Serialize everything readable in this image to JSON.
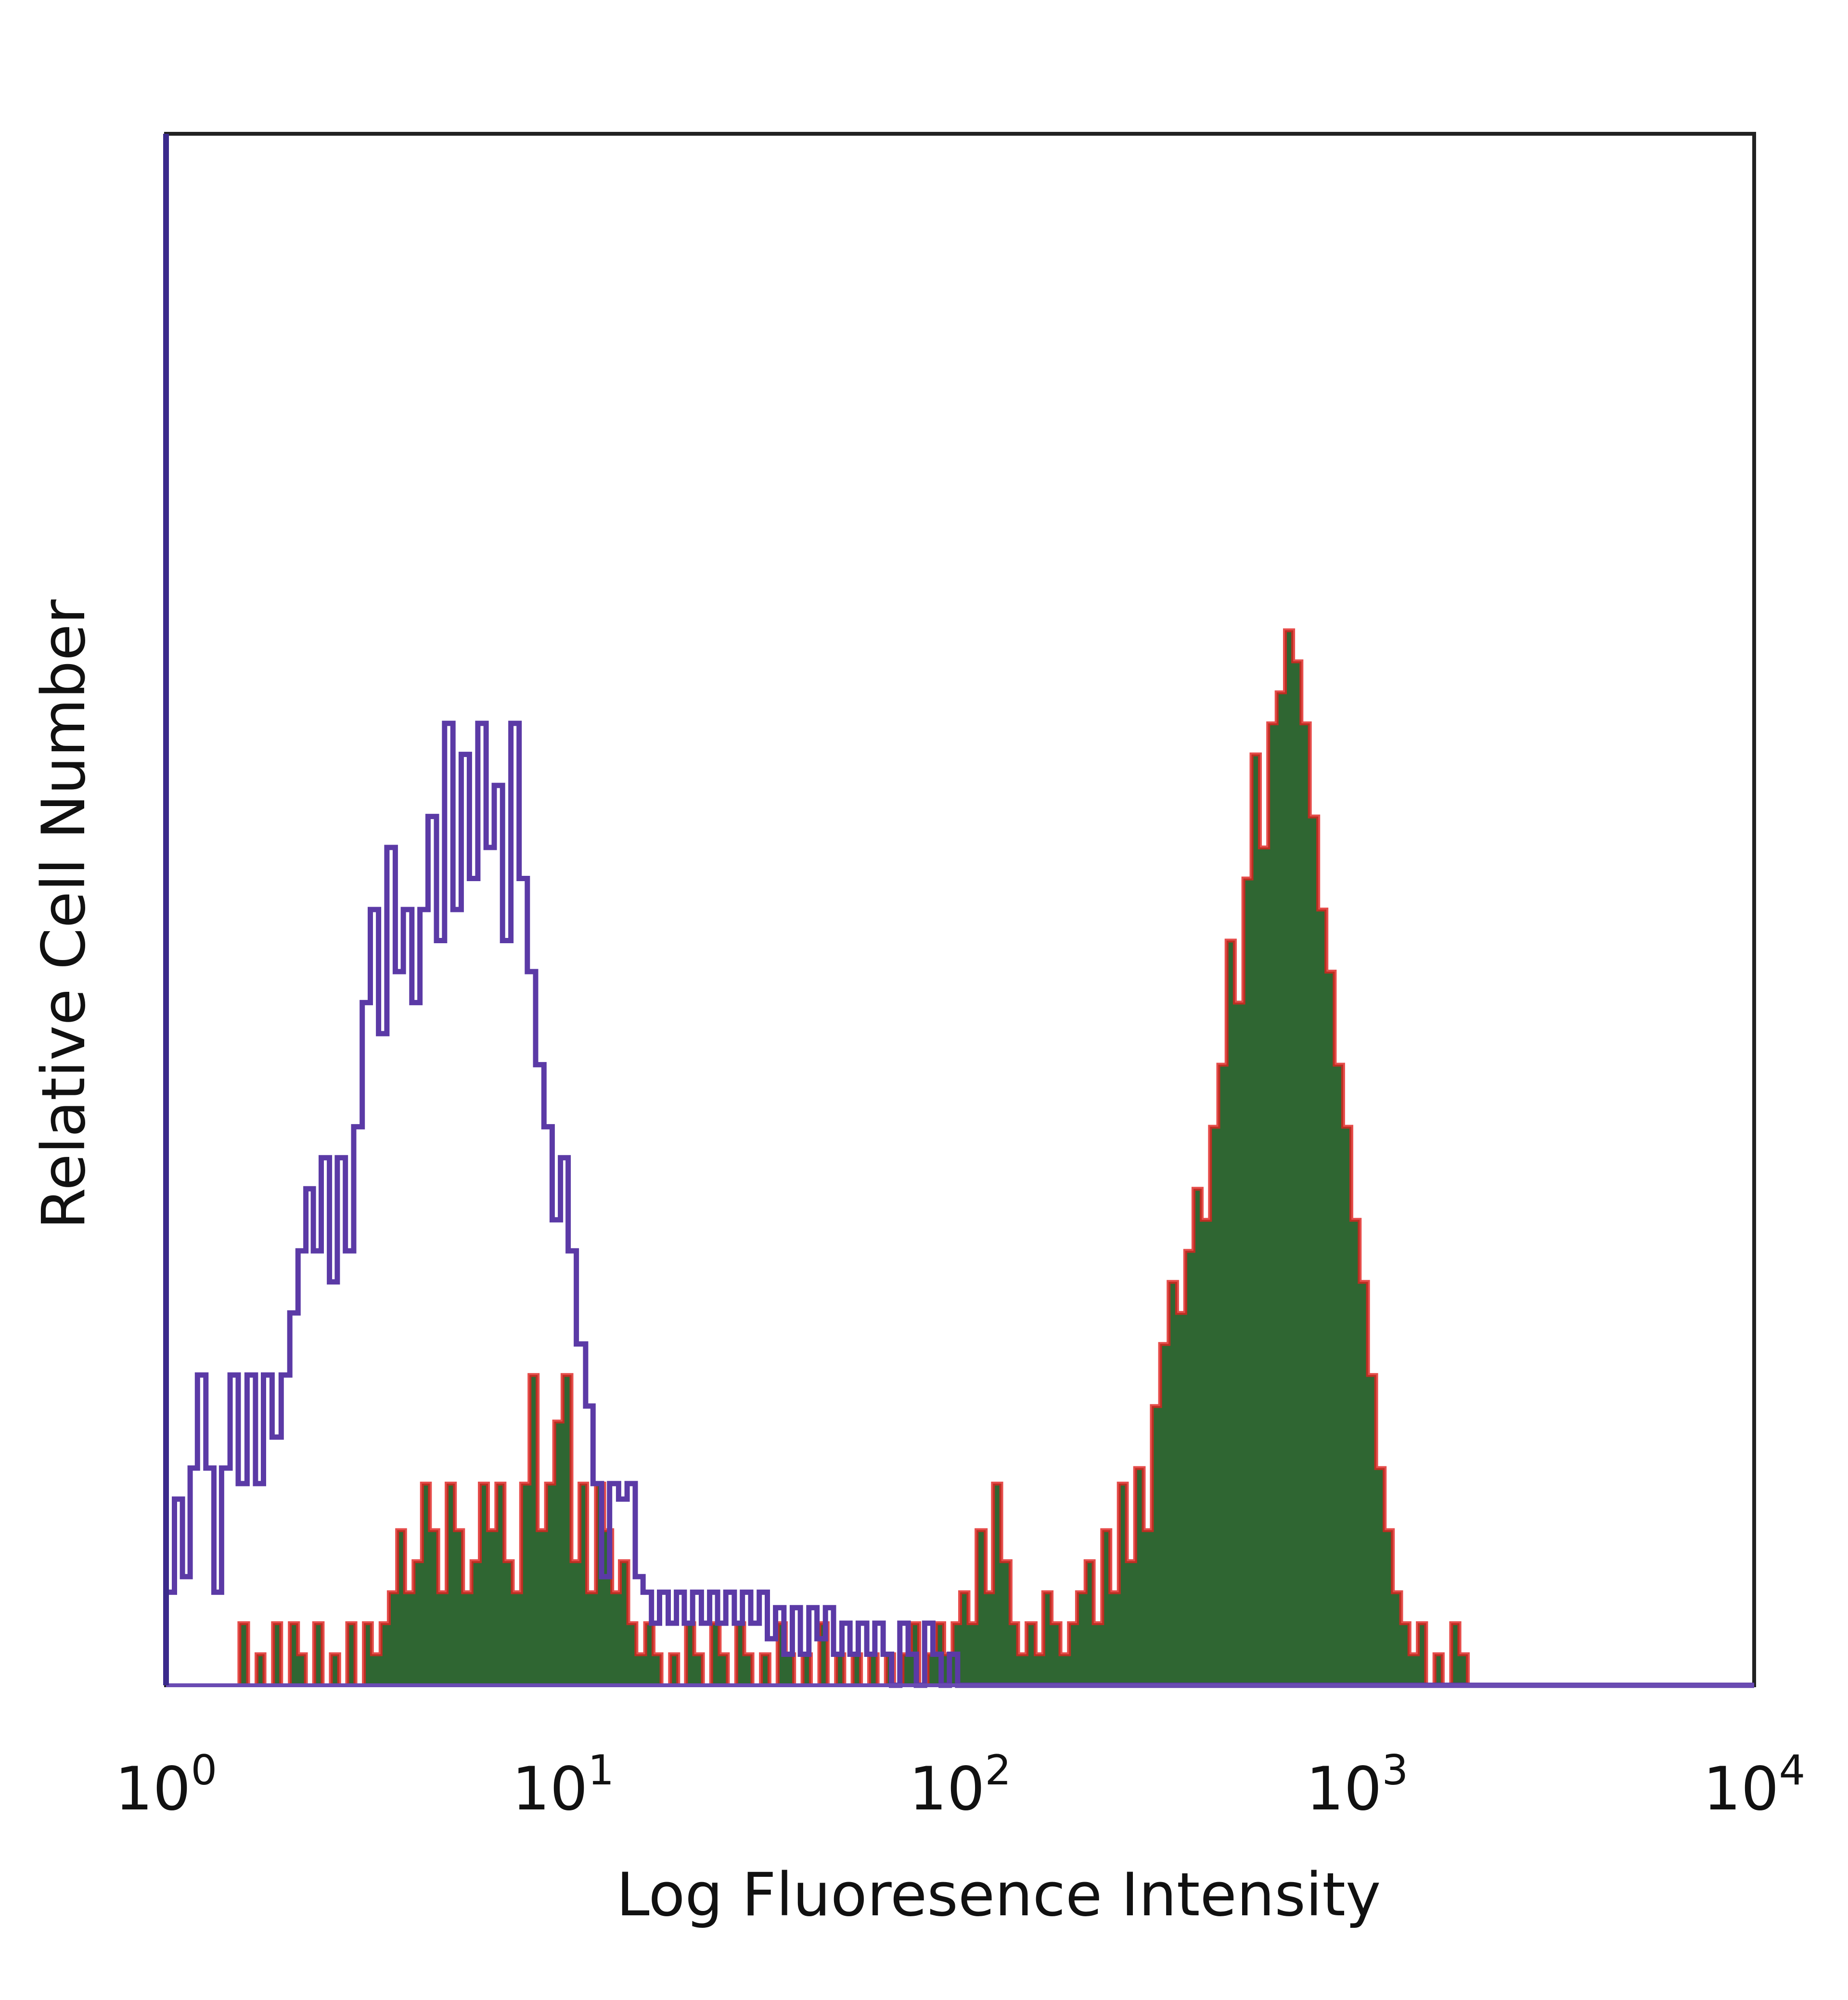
{
  "chart_data": {
    "type": "histogram",
    "x_scale": "log",
    "xlim": [
      1,
      10000
    ],
    "ylim": [
      0,
      100
    ],
    "xlabel": "Log Fluoresence Intensity",
    "ylabel": "Relative Cell Number",
    "x_ticks": [
      {
        "value": 1,
        "base": "10",
        "exp": "0"
      },
      {
        "value": 10,
        "base": "10",
        "exp": "1"
      },
      {
        "value": 100,
        "base": "10",
        "exp": "2"
      },
      {
        "value": 1000,
        "base": "10",
        "exp": "3"
      },
      {
        "value": 10000,
        "base": "10",
        "exp": "4"
      }
    ],
    "grid": false,
    "legend": false,
    "series": [
      {
        "style": "outline",
        "color": "#5b3aa6",
        "points": [
          [
            1.0,
            6
          ],
          [
            1.05,
            12
          ],
          [
            1.1,
            7
          ],
          [
            1.15,
            14
          ],
          [
            1.2,
            20
          ],
          [
            1.26,
            14
          ],
          [
            1.32,
            6
          ],
          [
            1.38,
            14
          ],
          [
            1.45,
            20
          ],
          [
            1.52,
            13
          ],
          [
            1.6,
            20
          ],
          [
            1.68,
            13
          ],
          [
            1.76,
            20
          ],
          [
            1.85,
            16
          ],
          [
            1.95,
            20
          ],
          [
            2.05,
            24
          ],
          [
            2.15,
            28
          ],
          [
            2.25,
            32
          ],
          [
            2.35,
            28
          ],
          [
            2.46,
            34
          ],
          [
            2.58,
            26
          ],
          [
            2.7,
            34
          ],
          [
            2.83,
            28
          ],
          [
            2.97,
            36
          ],
          [
            3.12,
            44
          ],
          [
            3.27,
            50
          ],
          [
            3.43,
            42
          ],
          [
            3.6,
            54
          ],
          [
            3.78,
            46
          ],
          [
            3.96,
            50
          ],
          [
            4.16,
            44
          ],
          [
            4.36,
            50
          ],
          [
            4.57,
            56
          ],
          [
            4.8,
            48
          ],
          [
            5.03,
            62
          ],
          [
            5.28,
            50
          ],
          [
            5.54,
            60
          ],
          [
            5.81,
            52
          ],
          [
            6.1,
            62
          ],
          [
            6.4,
            54
          ],
          [
            6.71,
            58
          ],
          [
            7.04,
            48
          ],
          [
            7.39,
            62
          ],
          [
            7.75,
            52
          ],
          [
            8.13,
            46
          ],
          [
            8.53,
            40
          ],
          [
            8.95,
            36
          ],
          [
            9.39,
            30
          ],
          [
            9.85,
            34
          ],
          [
            10.3,
            28
          ],
          [
            10.8,
            22
          ],
          [
            11.4,
            18
          ],
          [
            11.9,
            13
          ],
          [
            12.5,
            7
          ],
          [
            13.1,
            13
          ],
          [
            13.8,
            12
          ],
          [
            14.5,
            13
          ],
          [
            15.2,
            7
          ],
          [
            15.9,
            6
          ],
          [
            16.7,
            4
          ],
          [
            17.5,
            6
          ],
          [
            18.4,
            4
          ],
          [
            19.3,
            6
          ],
          [
            20.2,
            4
          ],
          [
            21.2,
            6
          ],
          [
            22.3,
            4
          ],
          [
            23.4,
            6
          ],
          [
            24.5,
            4
          ],
          [
            25.7,
            6
          ],
          [
            27.0,
            4
          ],
          [
            28.3,
            6
          ],
          [
            29.7,
            4
          ],
          [
            31.2,
            6
          ],
          [
            32.7,
            3
          ],
          [
            34.3,
            5
          ],
          [
            36.0,
            2
          ],
          [
            37.8,
            5
          ],
          [
            39.6,
            2
          ],
          [
            41.6,
            5
          ],
          [
            43.6,
            3
          ],
          [
            45.8,
            5
          ],
          [
            48.0,
            2
          ],
          [
            50.4,
            4
          ],
          [
            52.8,
            2
          ],
          [
            55.4,
            4
          ],
          [
            58.2,
            2
          ],
          [
            61.0,
            4
          ],
          [
            64.0,
            2
          ],
          [
            67.2,
            0
          ],
          [
            70.5,
            4
          ],
          [
            74.0,
            2
          ],
          [
            77.6,
            0
          ],
          [
            81.4,
            4
          ],
          [
            85.4,
            2
          ],
          [
            89.6,
            0
          ],
          [
            94.0,
            2
          ],
          [
            98.6,
            0
          ],
          [
            10000,
            0
          ]
        ]
      },
      {
        "style": "filled",
        "color": "#2f6632",
        "edge_color": "#e0201e",
        "points": [
          [
            1.46,
            0
          ],
          [
            1.53,
            4
          ],
          [
            1.61,
            0
          ],
          [
            1.69,
            2
          ],
          [
            1.77,
            0
          ],
          [
            1.86,
            4
          ],
          [
            1.95,
            0
          ],
          [
            2.05,
            4
          ],
          [
            2.15,
            2
          ],
          [
            2.25,
            0
          ],
          [
            2.36,
            4
          ],
          [
            2.48,
            0
          ],
          [
            2.6,
            2
          ],
          [
            2.73,
            0
          ],
          [
            2.86,
            4
          ],
          [
            3.0,
            0
          ],
          [
            3.15,
            4
          ],
          [
            3.3,
            2
          ],
          [
            3.47,
            4
          ],
          [
            3.64,
            6
          ],
          [
            3.82,
            10
          ],
          [
            4.0,
            6
          ],
          [
            4.2,
            8
          ],
          [
            4.41,
            13
          ],
          [
            4.62,
            10
          ],
          [
            4.85,
            6
          ],
          [
            5.09,
            13
          ],
          [
            5.34,
            10
          ],
          [
            5.6,
            6
          ],
          [
            5.88,
            8
          ],
          [
            6.17,
            13
          ],
          [
            6.47,
            10
          ],
          [
            6.79,
            13
          ],
          [
            7.12,
            8
          ],
          [
            7.47,
            6
          ],
          [
            7.84,
            13
          ],
          [
            8.23,
            20
          ],
          [
            8.63,
            10
          ],
          [
            9.06,
            13
          ],
          [
            9.5,
            17
          ],
          [
            9.97,
            20
          ],
          [
            10.5,
            8
          ],
          [
            11.0,
            13
          ],
          [
            11.5,
            6
          ],
          [
            12.1,
            13
          ],
          [
            12.7,
            10
          ],
          [
            13.3,
            6
          ],
          [
            13.9,
            8
          ],
          [
            14.6,
            4
          ],
          [
            15.3,
            2
          ],
          [
            16.1,
            4
          ],
          [
            16.9,
            2
          ],
          [
            17.7,
            0
          ],
          [
            18.6,
            2
          ],
          [
            19.5,
            0
          ],
          [
            20.4,
            4
          ],
          [
            21.4,
            2
          ],
          [
            22.5,
            0
          ],
          [
            23.6,
            4
          ],
          [
            24.8,
            2
          ],
          [
            26.0,
            0
          ],
          [
            27.3,
            4
          ],
          [
            28.6,
            2
          ],
          [
            30.0,
            0
          ],
          [
            31.5,
            2
          ],
          [
            33.1,
            0
          ],
          [
            34.7,
            4
          ],
          [
            36.4,
            2
          ],
          [
            38.2,
            0
          ],
          [
            40.1,
            2
          ],
          [
            42.1,
            0
          ],
          [
            44.2,
            4
          ],
          [
            46.4,
            0
          ],
          [
            48.7,
            2
          ],
          [
            51.1,
            0
          ],
          [
            53.6,
            2
          ],
          [
            56.3,
            0
          ],
          [
            59.0,
            2
          ],
          [
            62.0,
            0
          ],
          [
            65.0,
            2
          ],
          [
            68.2,
            0
          ],
          [
            71.6,
            2
          ],
          [
            75.2,
            4
          ],
          [
            78.9,
            0
          ],
          [
            82.8,
            2
          ],
          [
            86.9,
            4
          ],
          [
            91.2,
            2
          ],
          [
            95.7,
            4
          ],
          [
            100,
            6
          ],
          [
            105,
            4
          ],
          [
            110,
            10
          ],
          [
            116,
            6
          ],
          [
            121,
            13
          ],
          [
            127,
            8
          ],
          [
            134,
            4
          ],
          [
            140,
            2
          ],
          [
            147,
            4
          ],
          [
            155,
            2
          ],
          [
            162,
            6
          ],
          [
            170,
            4
          ],
          [
            179,
            2
          ],
          [
            188,
            4
          ],
          [
            197,
            6
          ],
          [
            207,
            8
          ],
          [
            217,
            4
          ],
          [
            228,
            10
          ],
          [
            239,
            6
          ],
          [
            251,
            13
          ],
          [
            263,
            8
          ],
          [
            276,
            14
          ],
          [
            290,
            10
          ],
          [
            304,
            18
          ],
          [
            319,
            22
          ],
          [
            335,
            26
          ],
          [
            352,
            24
          ],
          [
            369,
            28
          ],
          [
            387,
            32
          ],
          [
            406,
            30
          ],
          [
            426,
            36
          ],
          [
            447,
            40
          ],
          [
            469,
            48
          ],
          [
            492,
            44
          ],
          [
            517,
            52
          ],
          [
            542,
            60
          ],
          [
            569,
            54
          ],
          [
            597,
            62
          ],
          [
            627,
            64
          ],
          [
            658,
            68
          ],
          [
            690,
            66
          ],
          [
            724,
            62
          ],
          [
            760,
            56
          ],
          [
            798,
            50
          ],
          [
            837,
            46
          ],
          [
            878,
            40
          ],
          [
            922,
            36
          ],
          [
            967,
            30
          ],
          [
            1015,
            26
          ],
          [
            1065,
            20
          ],
          [
            1117,
            14
          ],
          [
            1173,
            10
          ],
          [
            1230,
            6
          ],
          [
            1291,
            4
          ],
          [
            1355,
            2
          ],
          [
            1422,
            4
          ],
          [
            1492,
            0
          ],
          [
            1566,
            2
          ],
          [
            1643,
            0
          ],
          [
            1725,
            4
          ],
          [
            1810,
            2
          ],
          [
            1900,
            0
          ],
          [
            10000,
            0
          ]
        ]
      }
    ]
  }
}
